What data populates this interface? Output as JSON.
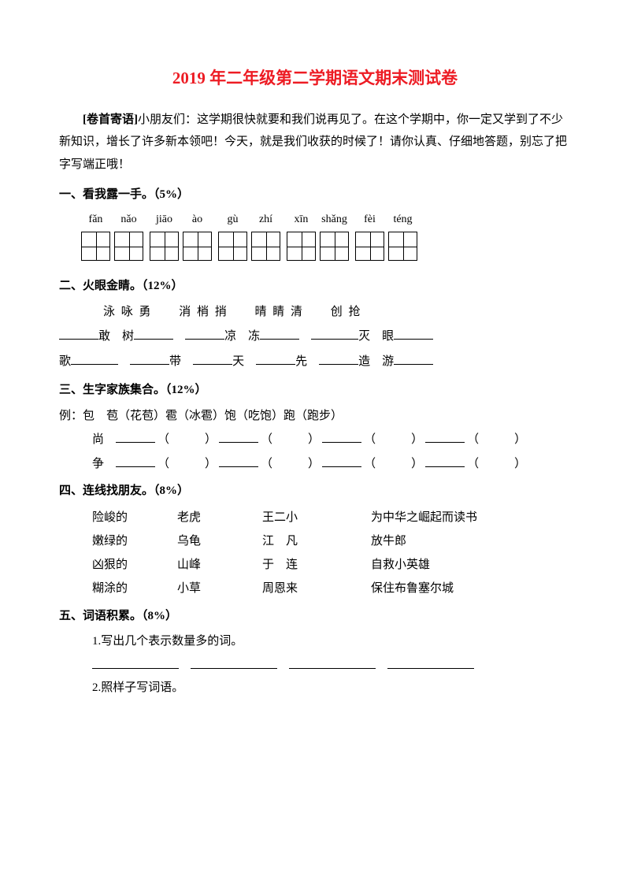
{
  "title": "2019 年二年级第二学期语文期末测试卷",
  "intro": {
    "label": "[卷首寄语]",
    "text": "小朋友们：这学期很快就要和我们说再见了。在这个学期中，你一定又学到了不少新知识，增长了许多新本领吧！今天，就是我们收获的时候了！请你认真、仔细地答题，别忘了把字写端正哦！"
  },
  "sections": {
    "s1": {
      "head": "一、看我露一手。（5%）",
      "pinyin": [
        "fǎn",
        "nǎo",
        "jiāo",
        "ào",
        "gù",
        "zhí",
        "xīn",
        "shǎng",
        "fèi",
        "téng"
      ]
    },
    "s2": {
      "head": "二、火眼金睛。（12%）",
      "groups": [
        "泳 咏 勇",
        "消 梢 捎",
        "晴 睛 清",
        "创 抢"
      ],
      "row2": {
        "c1": "敢",
        "c2": "树",
        "c3": "凉",
        "c4": "冻",
        "c5": "灭",
        "c6": "眼"
      },
      "row3": {
        "c1": "歌",
        "c2": "带",
        "c3": "天",
        "c4": "先",
        "c5": "造",
        "c6": "游"
      }
    },
    "s3": {
      "head": "三、生字家族集合。（12%）",
      "example_label": "例：",
      "example": "包　苞（花苞）雹（冰雹）饱（吃饱）跑（跑步）",
      "items": [
        "尚",
        "争"
      ]
    },
    "s4": {
      "head": "四、连线找朋友。（8%）",
      "colA": [
        "险峻的",
        "嫩绿的",
        "凶狠的",
        "糊涂的"
      ],
      "colB": [
        "老虎",
        "乌龟",
        "山峰",
        "小草"
      ],
      "colC": [
        "王二小",
        "江　凡",
        "于　连",
        "周恩来"
      ],
      "colD": [
        "为中华之崛起而读书",
        "放牛郎",
        "自救小英雄",
        "保住布鲁塞尔城"
      ]
    },
    "s5": {
      "head": "五、词语积累。（8%）",
      "sub1": "1.写出几个表示数量多的词。",
      "sub2": "2.照样子写词语。"
    }
  },
  "colors": {
    "title": "#ed1c24",
    "text": "#000000",
    "bg": "#ffffff"
  }
}
